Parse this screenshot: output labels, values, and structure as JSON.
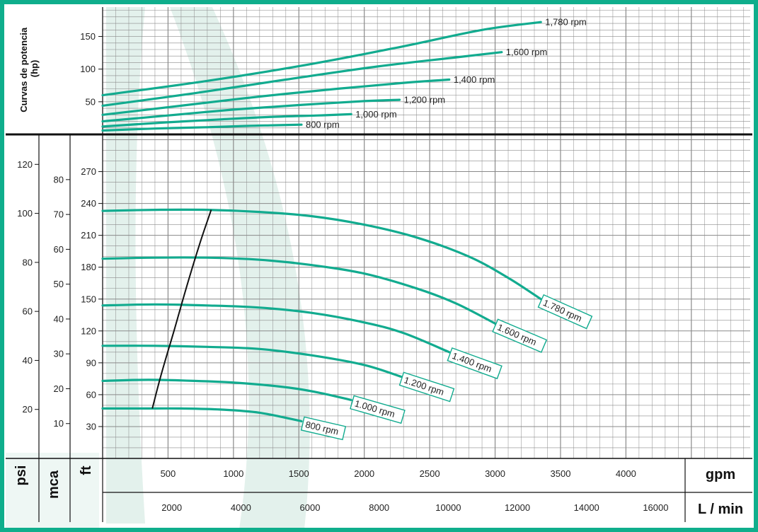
{
  "chart_data": {
    "type": "line",
    "colors": {
      "frame": "#0fae8c",
      "curve": "#12ab8f",
      "line": "#111111",
      "grid": "#8a8a8a",
      "watermark": "#e3f1ec"
    },
    "x_axis": {
      "gpm": {
        "label": "gpm",
        "ticks": [
          500,
          1000,
          1500,
          2000,
          2500,
          3000,
          3500,
          4000
        ],
        "range": [
          0,
          4950
        ]
      },
      "lpm": {
        "label": "L / min",
        "ticks": [
          2000,
          4000,
          6000,
          8000,
          10000,
          12000,
          14000,
          16000
        ]
      }
    },
    "power_panel": {
      "ylabel": "Curvas de potencia\n(hp)",
      "yticks": [
        50,
        100,
        150
      ],
      "ylim": [
        0,
        195
      ],
      "series": [
        {
          "name": "1,780 rpm",
          "x": [
            0,
            800,
            1600,
            2300,
            2900,
            3350
          ],
          "y": [
            60,
            82,
            108,
            135,
            160,
            172
          ]
        },
        {
          "name": "1,600 rpm",
          "x": [
            0,
            700,
            1400,
            2100,
            2700,
            3050
          ],
          "y": [
            44,
            63,
            84,
            104,
            118,
            126
          ]
        },
        {
          "name": "1,400 rpm",
          "x": [
            0,
            600,
            1200,
            1800,
            2300,
            2650
          ],
          "y": [
            30,
            44,
            58,
            70,
            79,
            84
          ]
        },
        {
          "name": "1,200 rpm",
          "x": [
            0,
            500,
            1000,
            1500,
            2000,
            2270
          ],
          "y": [
            20,
            29,
            38,
            45,
            51,
            53
          ]
        },
        {
          "name": "1,000 rpm",
          "x": [
            0,
            450,
            900,
            1300,
            1650,
            1900
          ],
          "y": [
            12,
            18,
            23,
            27,
            29,
            31
          ]
        },
        {
          "name": "800 rpm",
          "x": [
            0,
            400,
            800,
            1100,
            1300,
            1520
          ],
          "y": [
            6,
            9,
            11,
            13,
            14,
            15
          ]
        }
      ]
    },
    "head_panel": {
      "y_axes": [
        {
          "label": "psi",
          "ticks": [
            20,
            40,
            60,
            80,
            100,
            120
          ]
        },
        {
          "label": "mca",
          "ticks": [
            10,
            20,
            30,
            40,
            50,
            60,
            70,
            80
          ]
        },
        {
          "label": "ft",
          "ticks": [
            30,
            60,
            90,
            120,
            150,
            180,
            210,
            240,
            270
          ]
        }
      ],
      "ft_range": [
        0,
        305
      ],
      "series": [
        {
          "name": "1.780 rpm",
          "x": [
            0,
            400,
            800,
            1200,
            1600,
            2000,
            2400,
            2800,
            3100,
            3350
          ],
          "y": [
            233,
            234,
            234,
            232,
            228,
            220,
            208,
            190,
            170,
            150
          ]
        },
        {
          "name": "1.600 rpm",
          "x": [
            0,
            400,
            800,
            1200,
            1600,
            2000,
            2400,
            2700,
            3000
          ],
          "y": [
            188,
            189,
            189,
            187,
            182,
            174,
            160,
            146,
            127
          ]
        },
        {
          "name": "1.400 rpm",
          "x": [
            0,
            400,
            800,
            1200,
            1600,
            2000,
            2300,
            2650
          ],
          "y": [
            144,
            145,
            144,
            142,
            137,
            128,
            118,
            100
          ]
        },
        {
          "name": "1.200 rpm",
          "x": [
            0,
            400,
            800,
            1200,
            1600,
            2000,
            2280
          ],
          "y": [
            106,
            106,
            105,
            103,
            97,
            88,
            77
          ]
        },
        {
          "name": "1.000 rpm",
          "x": [
            0,
            350,
            700,
            1050,
            1400,
            1650,
            1900
          ],
          "y": [
            73,
            74,
            73,
            71,
            67,
            62,
            55
          ]
        },
        {
          "name": "800 rpm",
          "x": [
            0,
            300,
            600,
            900,
            1200,
            1520
          ],
          "y": [
            47,
            47,
            47,
            46,
            43,
            35
          ]
        }
      ],
      "label_rotation_deg": [
        24,
        23,
        20,
        18,
        16,
        13
      ],
      "limit_line": {
        "x": [
          380,
          450,
          550,
          650,
          750,
          830
        ],
        "y": [
          47,
          80,
          122,
          165,
          205,
          234
        ]
      }
    }
  }
}
